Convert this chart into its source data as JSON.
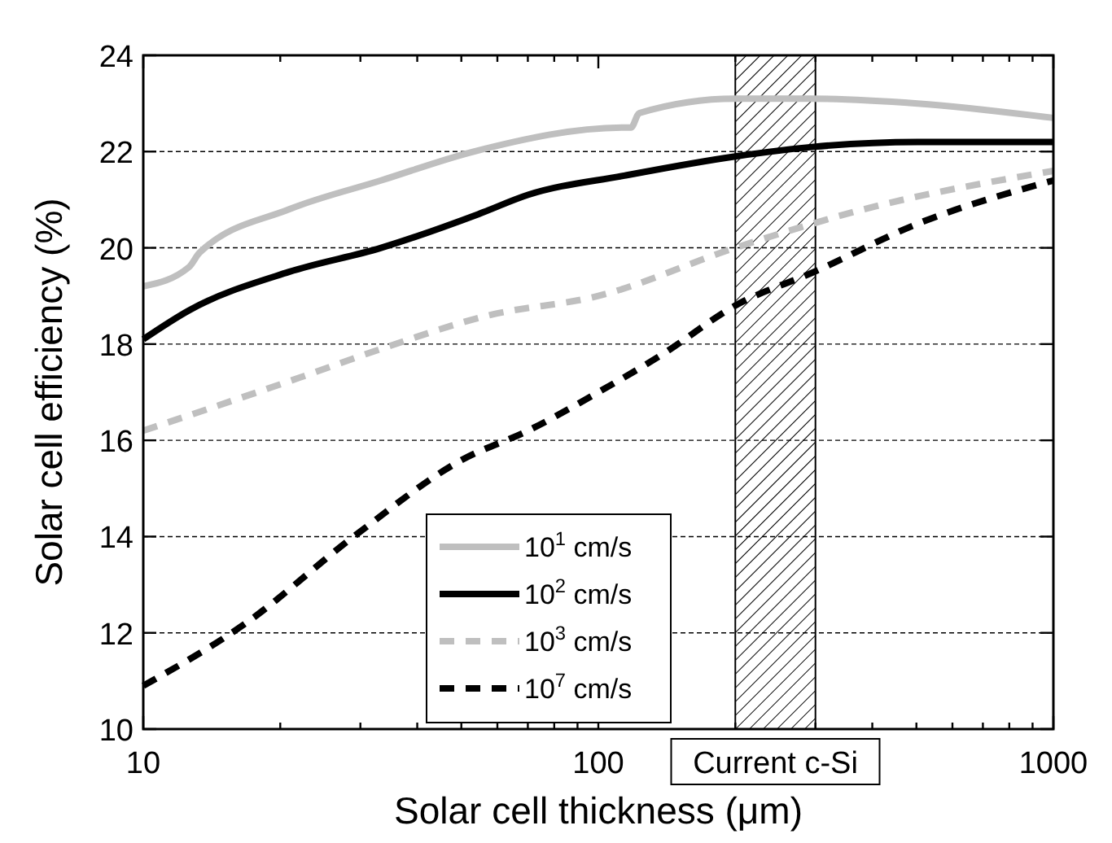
{
  "chart_data": {
    "type": "line",
    "xlabel": "Solar cell thickness (μm)",
    "ylabel": "Solar cell efficiency (%)",
    "log": "x",
    "xlim": [
      10,
      1000
    ],
    "ylim": [
      10,
      24
    ],
    "xticks": [
      10,
      {
        "value": 20,
        "label": null
      },
      {
        "value": 30,
        "label": null
      },
      {
        "value": 40,
        "label": null
      },
      {
        "value": 50,
        "label": null
      },
      {
        "value": 60,
        "label": null
      },
      {
        "value": 70,
        "label": null
      },
      {
        "value": 80,
        "label": null
      },
      {
        "value": 90,
        "label": null
      },
      100,
      {
        "value": 200,
        "label": null
      },
      {
        "value": 300,
        "label": null
      },
      {
        "value": 400,
        "label": null
      },
      {
        "value": 500,
        "label": null
      },
      {
        "value": 600,
        "label": null
      },
      {
        "value": 700,
        "label": null
      },
      {
        "value": 800,
        "label": null
      },
      {
        "value": 900,
        "label": null
      },
      1000
    ],
    "yticks": [
      10,
      12,
      14,
      16,
      18,
      20,
      22,
      24
    ],
    "grid": "y",
    "legend": "bottom",
    "bands": [
      {
        "axis": "x",
        "from": 200,
        "to": 300,
        "label": "Current c-Si"
      }
    ],
    "series": [
      {
        "name": "10$^{1}$ cm/s",
        "color": "#bfbfbf",
        "line_style": "solid",
        "x": [
          10,
          12.6,
          13.3,
          20.9,
          33.3,
          53.2,
          114,
          118,
          123,
          200,
          291,
          503,
          1000
        ],
        "values": [
          19.2,
          19.6,
          19.9,
          20.8,
          21.4,
          22.0,
          22.5,
          22.5,
          22.8,
          23.1,
          23.1,
          23.0,
          22.7
        ]
      },
      {
        "name": "10$^{2}$ cm/s",
        "color": "#000000",
        "line_style": "solid",
        "x": [
          10,
          12.6,
          20.9,
          33.3,
          54.5,
          70,
          114,
          200,
          298,
          503,
          1000
        ],
        "values": [
          18.1,
          18.7,
          19.5,
          20.0,
          20.7,
          21.1,
          21.5,
          21.9,
          22.1,
          22.2,
          22.2
        ]
      },
      {
        "name": "10$^{3}$ cm/s",
        "color": "#bfbfbf",
        "line_style": "dashed",
        "x": [
          10,
          22,
          33.3,
          57.6,
          100,
          200,
          383,
          1000
        ],
        "values": [
          16.2,
          17.3,
          17.9,
          18.6,
          19.0,
          20.0,
          20.8,
          21.6
        ]
      },
      {
        "name": "10$^{7}$ cm/s",
        "color": "#000000",
        "line_style": "dashed",
        "x": [
          10,
          16.8,
          29,
          50.3,
          70,
          100,
          139,
          200,
          298,
          503,
          1000
        ],
        "values": [
          10.9,
          12.2,
          14.0,
          15.6,
          16.2,
          17.0,
          17.8,
          18.8,
          19.5,
          20.5,
          21.4
        ]
      }
    ]
  }
}
